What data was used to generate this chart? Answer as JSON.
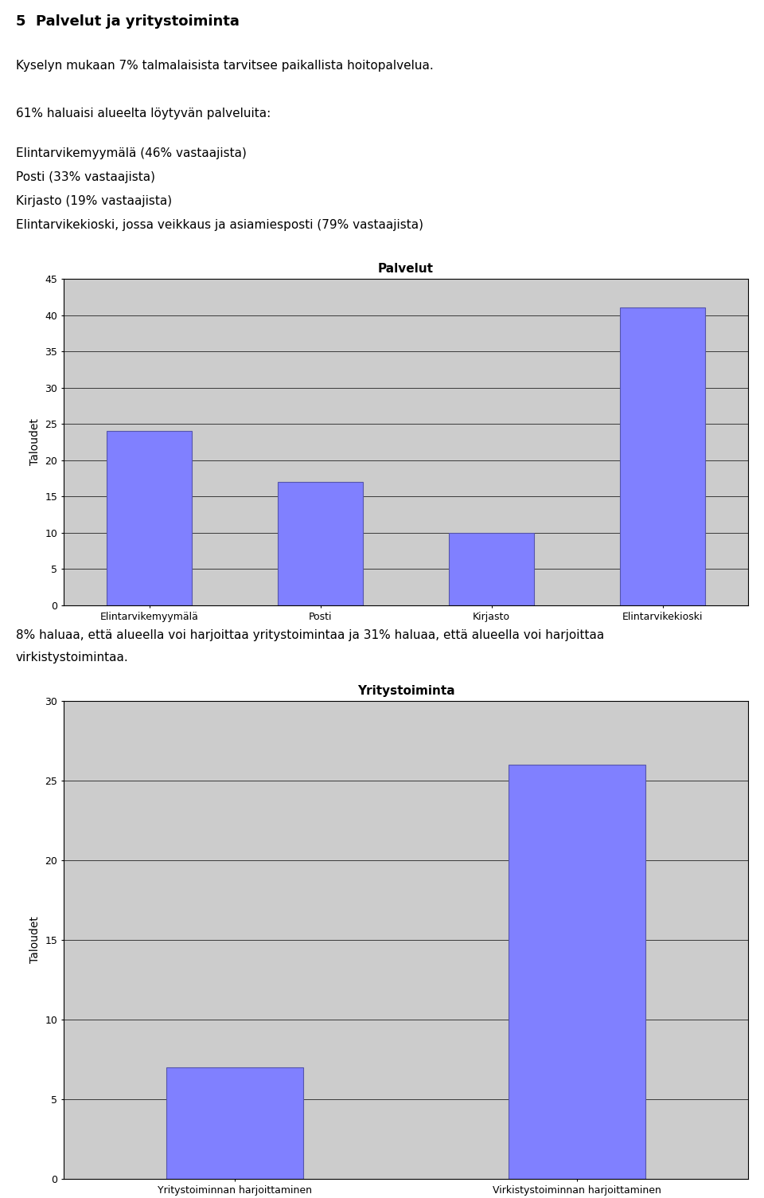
{
  "title_section": "5  Palvelut ja yritystoiminta",
  "para1": "Kyselyn mukaan 7% talmalaisista tarvitsee paikallista hoitopalvelua.",
  "para2": "61% haluaisi alueelta löytyvän palveluita:",
  "list_lines": [
    "Elintarvikemyymälä (46% vastaajista)",
    "Posti (33% vastaajista)",
    "Kirjasto (19% vastaajista)",
    "Elintarvikekioski, jossa veikkaus ja asiamiesposti (79% vastaajista)"
  ],
  "chart1_title": "Palvelut",
  "chart1_categories": [
    "Elintarvikemyymälä",
    "Posti",
    "Kirjasto",
    "Elintarvikekioski"
  ],
  "chart1_values": [
    24,
    17,
    10,
    41
  ],
  "chart1_ylabel": "Taloudet",
  "chart1_ylim": [
    0,
    45
  ],
  "chart1_yticks": [
    0,
    5,
    10,
    15,
    20,
    25,
    30,
    35,
    40,
    45
  ],
  "text2_line1": "8% haluaa, että alueella voi harjoittaa yritystoimintaa ja 31% haluaa, että alueella voi harjoittaa",
  "text2_line2": "virkistystoimintaa.",
  "chart2_title": "Yritystoiminta",
  "chart2_categories": [
    "Yritystoiminnan harjoittaminen",
    "Virkistystoiminnan harjoittaminen"
  ],
  "chart2_values": [
    7,
    26
  ],
  "chart2_ylabel": "Taloudet",
  "chart2_ylim": [
    0,
    30
  ],
  "chart2_yticks": [
    0,
    5,
    10,
    15,
    20,
    25,
    30
  ],
  "bar_color": "#8080ff",
  "bar_edge_color": "#5555aa",
  "chart_bg_color": "#cccccc",
  "fig_bg_color": "#ffffff",
  "grid_color": "#aaaaaa",
  "font_family": "DejaVu Sans",
  "title_fontsize": 13,
  "body_fontsize": 11,
  "chart_title_fontsize": 11,
  "ylabel_fontsize": 10,
  "tick_fontsize": 9
}
